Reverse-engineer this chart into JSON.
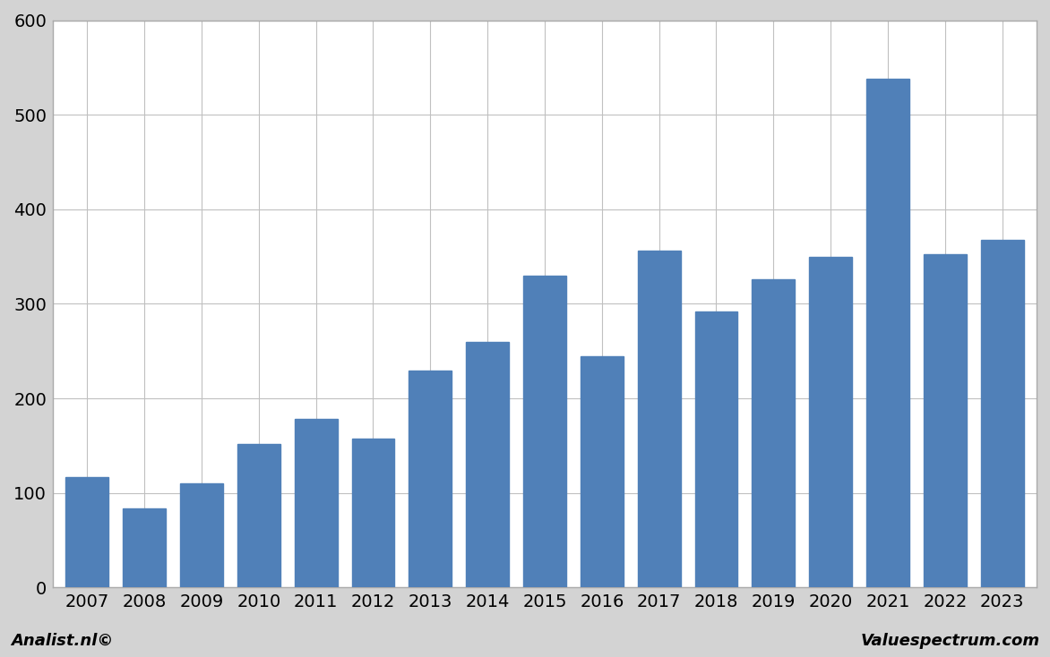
{
  "categories": [
    2007,
    2008,
    2009,
    2010,
    2011,
    2012,
    2013,
    2014,
    2015,
    2016,
    2017,
    2018,
    2019,
    2020,
    2021,
    2022,
    2023
  ],
  "values": [
    117,
    84,
    110,
    152,
    178,
    157,
    229,
    260,
    330,
    245,
    356,
    292,
    326,
    350,
    538,
    352,
    368
  ],
  "bar_color": "#5080b8",
  "ylim": [
    0,
    600
  ],
  "yticks": [
    0,
    100,
    200,
    300,
    400,
    500,
    600
  ],
  "background_color": "#ffffff",
  "plot_bg_color": "#ffffff",
  "grid_color": "#c0c0c0",
  "footer_left": "Analist.nl©",
  "footer_right": "Valuespectrum.com",
  "footer_fontsize": 13,
  "bar_width": 0.75,
  "border_color": "#aaaaaa",
  "tick_fontsize": 14
}
